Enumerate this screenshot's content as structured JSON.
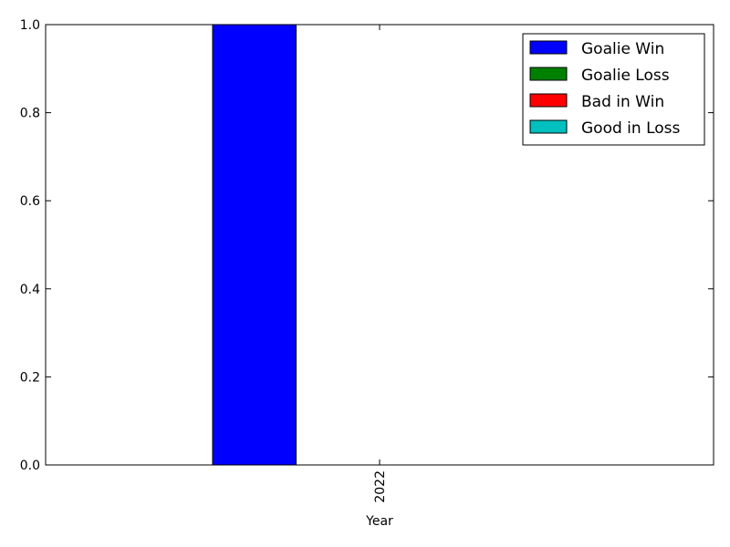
{
  "chart_data": {
    "type": "bar",
    "categories": [
      "2022"
    ],
    "xlabel": "Year",
    "ylabel": "",
    "ylim": [
      0,
      1.0
    ],
    "yticks": [
      "0.0",
      "0.2",
      "0.4",
      "0.6",
      "0.8",
      "1.0"
    ],
    "grid": false,
    "legend_position": "top-right",
    "series": [
      {
        "name": "Goalie Win",
        "values": [
          1.0
        ],
        "color": "#0000ff"
      },
      {
        "name": "Goalie Loss",
        "values": [
          0.0
        ],
        "color": "#008000"
      },
      {
        "name": "Bad in Win",
        "values": [
          0.0
        ],
        "color": "#ff0000"
      },
      {
        "name": "Good in Loss",
        "values": [
          0.0
        ],
        "color": "#00bfbf"
      }
    ]
  }
}
